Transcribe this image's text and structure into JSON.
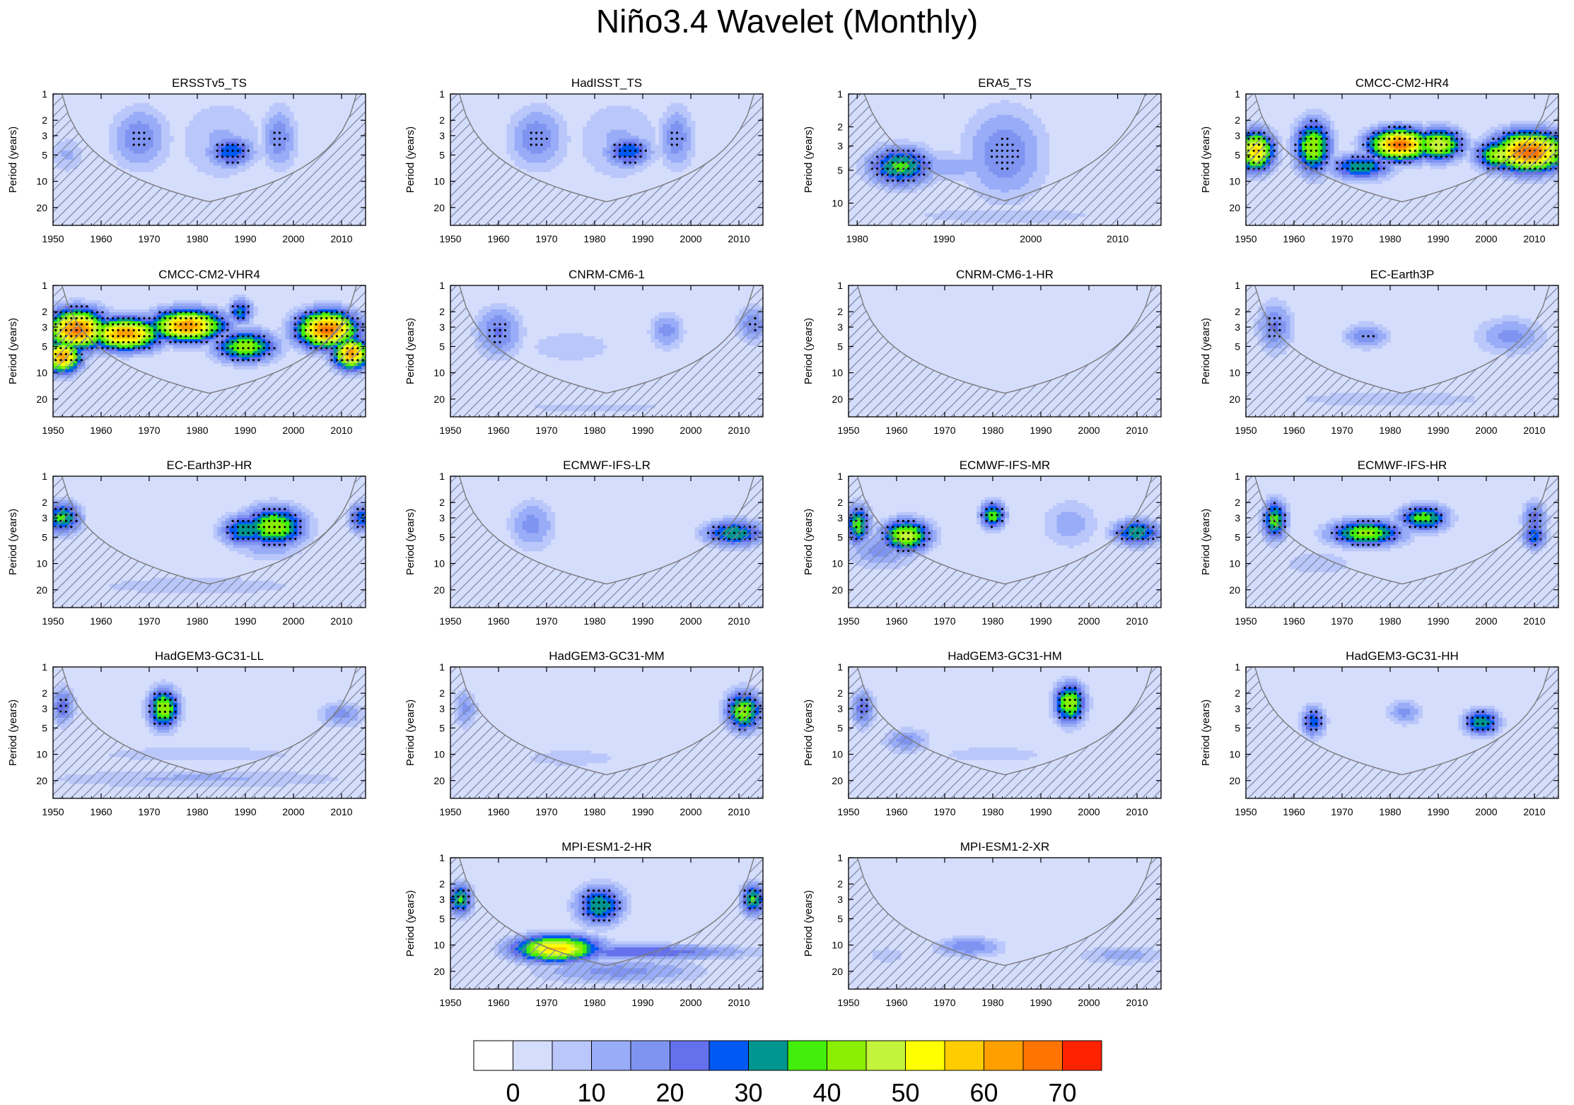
{
  "figure": {
    "title": "Niño3.4 Wavelet (Monthly)"
  },
  "chart_data": {
    "type": "heatmap",
    "ylabel": "Period (years)",
    "y_ticks": [
      1,
      2,
      3,
      5,
      10,
      20
    ],
    "y_scale": "log",
    "colorbar": {
      "levels": [
        0,
        5,
        10,
        15,
        20,
        25,
        30,
        35,
        40,
        45,
        50,
        55,
        60,
        65,
        70,
        75
      ],
      "tick_labels": [
        "0",
        "10",
        "20",
        "30",
        "40",
        "50",
        "60",
        "70"
      ],
      "colors": [
        "#ffffff",
        "#d5ddfc",
        "#bac7fa",
        "#98acf7",
        "#7f94f1",
        "#6470ec",
        "#0059f3",
        "#00958f",
        "#42ee0a",
        "#8aee05",
        "#c4f33b",
        "#ffff00",
        "#ffcc00",
        "#ff9f00",
        "#ff7400",
        "#ff2200"
      ]
    },
    "panels": [
      {
        "name": "ERSSTv5_TS",
        "x_start": 1950,
        "x_end": 2015,
        "x_ticks": [
          1950,
          1960,
          1970,
          1980,
          1990,
          2000,
          2010
        ],
        "y_range": [
          1,
          32
        ],
        "blobs": [
          {
            "x": 1968,
            "y": 3.2,
            "sx": 5,
            "sy": 0.25,
            "v": 24
          },
          {
            "x": 1987,
            "y": 4.6,
            "sx": 4,
            "sy": 0.12,
            "v": 34
          },
          {
            "x": 1985,
            "y": 3.5,
            "sx": 8,
            "sy": 0.35,
            "v": 16
          },
          {
            "x": 1997,
            "y": 3.2,
            "sx": 3,
            "sy": 0.25,
            "v": 24
          },
          {
            "x": 1953,
            "y": 5.0,
            "sx": 3,
            "sy": 0.15,
            "v": 16
          },
          {
            "x": 1985,
            "y": 7.0,
            "sx": 25,
            "sy": 0.35,
            "v": 10
          }
        ]
      },
      {
        "name": "HadISST_TS",
        "x_start": 1950,
        "x_end": 2015,
        "x_ticks": [
          1950,
          1960,
          1970,
          1980,
          1990,
          2000,
          2010
        ],
        "y_range": [
          1,
          32
        ],
        "blobs": [
          {
            "x": 1968,
            "y": 3.2,
            "sx": 5,
            "sy": 0.25,
            "v": 24
          },
          {
            "x": 1987,
            "y": 4.6,
            "sx": 4,
            "sy": 0.12,
            "v": 34
          },
          {
            "x": 1985,
            "y": 3.5,
            "sx": 8,
            "sy": 0.35,
            "v": 16
          },
          {
            "x": 1997,
            "y": 3.2,
            "sx": 3,
            "sy": 0.25,
            "v": 24
          },
          {
            "x": 1985,
            "y": 7.0,
            "sx": 25,
            "sy": 0.35,
            "v": 10
          }
        ]
      },
      {
        "name": "ERA5_TS",
        "x_start": 1979,
        "x_end": 2015,
        "x_ticks": [
          1980,
          1990,
          2000,
          2010
        ],
        "y_range": [
          1,
          16
        ],
        "blobs": [
          {
            "x": 1985,
            "y": 4.6,
            "sx": 3,
            "sy": 0.12,
            "v": 42
          },
          {
            "x": 1997,
            "y": 3.5,
            "sx": 4,
            "sy": 0.3,
            "v": 24
          },
          {
            "x": 1990,
            "y": 4.6,
            "sx": 7,
            "sy": 0.1,
            "v": 18
          },
          {
            "x": 1997,
            "y": 13,
            "sx": 15,
            "sy": 0.08,
            "v": 12
          }
        ]
      },
      {
        "name": "CMCC-CM2-HR4",
        "x_start": 1950,
        "x_end": 2015,
        "x_ticks": [
          1950,
          1960,
          1970,
          1980,
          1990,
          2000,
          2010
        ],
        "y_range": [
          1,
          32
        ],
        "blobs": [
          {
            "x": 1952,
            "y": 4.5,
            "sx": 3,
            "sy": 0.15,
            "v": 62
          },
          {
            "x": 1964,
            "y": 4.0,
            "sx": 3,
            "sy": 0.2,
            "v": 50
          },
          {
            "x": 1974,
            "y": 6.8,
            "sx": 5,
            "sy": 0.1,
            "v": 40
          },
          {
            "x": 1982,
            "y": 3.8,
            "sx": 5,
            "sy": 0.12,
            "v": 72
          },
          {
            "x": 1990,
            "y": 3.8,
            "sx": 4,
            "sy": 0.12,
            "v": 55
          },
          {
            "x": 2009,
            "y": 4.6,
            "sx": 6,
            "sy": 0.15,
            "v": 74
          },
          {
            "x": 2003,
            "y": 5.0,
            "sx": 4,
            "sy": 0.12,
            "v": 52
          }
        ]
      },
      {
        "name": "CMCC-CM2-VHR4",
        "x_start": 1950,
        "x_end": 2015,
        "x_ticks": [
          1950,
          1960,
          1970,
          1980,
          1990,
          2000,
          2010
        ],
        "y_range": [
          1,
          32
        ],
        "blobs": [
          {
            "x": 1955,
            "y": 3.2,
            "sx": 5,
            "sy": 0.15,
            "v": 72
          },
          {
            "x": 1965,
            "y": 3.6,
            "sx": 6,
            "sy": 0.12,
            "v": 68
          },
          {
            "x": 1978,
            "y": 2.9,
            "sx": 6,
            "sy": 0.12,
            "v": 68
          },
          {
            "x": 1990,
            "y": 5.0,
            "sx": 5,
            "sy": 0.12,
            "v": 48
          },
          {
            "x": 2007,
            "y": 3.2,
            "sx": 5,
            "sy": 0.14,
            "v": 72
          },
          {
            "x": 1952,
            "y": 6.5,
            "sx": 3,
            "sy": 0.12,
            "v": 68
          },
          {
            "x": 2012,
            "y": 6.0,
            "sx": 3,
            "sy": 0.12,
            "v": 68
          },
          {
            "x": 1989,
            "y": 2.0,
            "sx": 2,
            "sy": 0.1,
            "v": 36
          }
        ]
      },
      {
        "name": "CNRM-CM6-1",
        "x_start": 1950,
        "x_end": 2015,
        "x_ticks": [
          1950,
          1960,
          1970,
          1980,
          1990,
          2000,
          2010
        ],
        "y_range": [
          1,
          32
        ],
        "blobs": [
          {
            "x": 1960,
            "y": 3.4,
            "sx": 4,
            "sy": 0.2,
            "v": 26
          },
          {
            "x": 1995,
            "y": 3.3,
            "sx": 3,
            "sy": 0.15,
            "v": 22
          },
          {
            "x": 2013,
            "y": 2.8,
            "sx": 3,
            "sy": 0.15,
            "v": 24
          },
          {
            "x": 1980,
            "y": 25,
            "sx": 30,
            "sy": 0.08,
            "v": 11
          },
          {
            "x": 1975,
            "y": 5.0,
            "sx": 12,
            "sy": 0.2,
            "v": 12
          }
        ]
      },
      {
        "name": "CNRM-CM6-1-HR",
        "x_start": 1950,
        "x_end": 2015,
        "x_ticks": [
          1950,
          1960,
          1970,
          1980,
          1990,
          2000,
          2010
        ],
        "y_range": [
          1,
          32
        ],
        "blobs": [
          {
            "x": 1985,
            "y": 2.5,
            "sx": 12,
            "sy": 0.25,
            "v": 7
          }
        ]
      },
      {
        "name": "EC-Earth3P",
        "x_start": 1950,
        "x_end": 2015,
        "x_ticks": [
          1950,
          1960,
          1970,
          1980,
          1990,
          2000,
          2010
        ],
        "y_range": [
          1,
          32
        ],
        "blobs": [
          {
            "x": 1956,
            "y": 3.0,
            "sx": 3,
            "sy": 0.2,
            "v": 26
          },
          {
            "x": 1975,
            "y": 3.8,
            "sx": 4,
            "sy": 0.1,
            "v": 24
          },
          {
            "x": 2005,
            "y": 3.8,
            "sx": 6,
            "sy": 0.15,
            "v": 22
          },
          {
            "x": 1980,
            "y": 20,
            "sx": 30,
            "sy": 0.1,
            "v": 12
          },
          {
            "x": 1980,
            "y": 8,
            "sx": 30,
            "sy": 0.1,
            "v": 10
          }
        ]
      },
      {
        "name": "EC-Earth3P-HR",
        "x_start": 1950,
        "x_end": 2015,
        "x_ticks": [
          1950,
          1960,
          1970,
          1980,
          1990,
          2000,
          2010
        ],
        "y_range": [
          1,
          32
        ],
        "blobs": [
          {
            "x": 1952,
            "y": 3.0,
            "sx": 3,
            "sy": 0.12,
            "v": 42
          },
          {
            "x": 1996,
            "y": 3.8,
            "sx": 5,
            "sy": 0.15,
            "v": 50
          },
          {
            "x": 1990,
            "y": 4.2,
            "sx": 4,
            "sy": 0.12,
            "v": 40
          },
          {
            "x": 2014,
            "y": 3.0,
            "sx": 2,
            "sy": 0.12,
            "v": 34
          },
          {
            "x": 1980,
            "y": 18,
            "sx": 30,
            "sy": 0.12,
            "v": 12
          },
          {
            "x": 1995,
            "y": 6.5,
            "sx": 6,
            "sy": 0.1,
            "v": 20
          }
        ]
      },
      {
        "name": "ECMWF-IFS-LR",
        "x_start": 1950,
        "x_end": 2015,
        "x_ticks": [
          1950,
          1960,
          1970,
          1980,
          1990,
          2000,
          2010
        ],
        "y_range": [
          1,
          32
        ],
        "blobs": [
          {
            "x": 2009,
            "y": 4.5,
            "sx": 5,
            "sy": 0.1,
            "v": 40
          },
          {
            "x": 1967,
            "y": 3.6,
            "sx": 4,
            "sy": 0.2,
            "v": 22
          },
          {
            "x": 1990,
            "y": 8,
            "sx": 15,
            "sy": 0.2,
            "v": 10
          }
        ]
      },
      {
        "name": "ECMWF-IFS-MR",
        "x_start": 1950,
        "x_end": 2015,
        "x_ticks": [
          1950,
          1960,
          1970,
          1980,
          1990,
          2000,
          2010
        ],
        "y_range": [
          1,
          32
        ],
        "blobs": [
          {
            "x": 1962,
            "y": 4.8,
            "sx": 4,
            "sy": 0.12,
            "v": 52
          },
          {
            "x": 1952,
            "y": 3.6,
            "sx": 2,
            "sy": 0.15,
            "v": 44
          },
          {
            "x": 1980,
            "y": 2.8,
            "sx": 2,
            "sy": 0.1,
            "v": 45
          },
          {
            "x": 2010,
            "y": 4.4,
            "sx": 4,
            "sy": 0.1,
            "v": 40
          },
          {
            "x": 1957,
            "y": 7,
            "sx": 6,
            "sy": 0.15,
            "v": 22
          },
          {
            "x": 1996,
            "y": 3.5,
            "sx": 5,
            "sy": 0.2,
            "v": 18
          }
        ]
      },
      {
        "name": "ECMWF-IFS-HR",
        "x_start": 1950,
        "x_end": 2015,
        "x_ticks": [
          1950,
          1960,
          1970,
          1980,
          1990,
          2000,
          2010
        ],
        "y_range": [
          1,
          32
        ],
        "blobs": [
          {
            "x": 1956,
            "y": 3.2,
            "sx": 2,
            "sy": 0.15,
            "v": 44
          },
          {
            "x": 1975,
            "y": 4.5,
            "sx": 6,
            "sy": 0.1,
            "v": 48
          },
          {
            "x": 1987,
            "y": 3.0,
            "sx": 4,
            "sy": 0.1,
            "v": 44
          },
          {
            "x": 2010,
            "y": 3.2,
            "sx": 2,
            "sy": 0.15,
            "v": 30
          },
          {
            "x": 2010,
            "y": 4.8,
            "sx": 2,
            "sy": 0.1,
            "v": 36
          },
          {
            "x": 1965,
            "y": 10,
            "sx": 10,
            "sy": 0.15,
            "v": 12
          }
        ]
      },
      {
        "name": "HadGEM3-GC31-LL",
        "x_start": 1950,
        "x_end": 2015,
        "x_ticks": [
          1950,
          1960,
          1970,
          1980,
          1990,
          2000,
          2010
        ],
        "y_range": [
          1,
          32
        ],
        "blobs": [
          {
            "x": 1973,
            "y": 3.0,
            "sx": 2.5,
            "sy": 0.15,
            "v": 50
          },
          {
            "x": 1952,
            "y": 2.8,
            "sx": 2,
            "sy": 0.15,
            "v": 28
          },
          {
            "x": 2010,
            "y": 3.5,
            "sx": 4,
            "sy": 0.1,
            "v": 22
          },
          {
            "x": 1980,
            "y": 19,
            "sx": 30,
            "sy": 0.08,
            "v": 16
          },
          {
            "x": 1980,
            "y": 10,
            "sx": 30,
            "sy": 0.1,
            "v": 12
          }
        ]
      },
      {
        "name": "HadGEM3-GC31-MM",
        "x_start": 1950,
        "x_end": 2015,
        "x_ticks": [
          1950,
          1960,
          1970,
          1980,
          1990,
          2000,
          2010
        ],
        "y_range": [
          1,
          32
        ],
        "blobs": [
          {
            "x": 2011,
            "y": 3.2,
            "sx": 3,
            "sy": 0.15,
            "v": 48
          },
          {
            "x": 1953,
            "y": 3.0,
            "sx": 2,
            "sy": 0.15,
            "v": 22
          },
          {
            "x": 1975,
            "y": 11,
            "sx": 10,
            "sy": 0.08,
            "v": 14
          }
        ]
      },
      {
        "name": "HadGEM3-GC31-HM",
        "x_start": 1950,
        "x_end": 2015,
        "x_ticks": [
          1950,
          1960,
          1970,
          1980,
          1990,
          2000,
          2010
        ],
        "y_range": [
          1,
          32
        ],
        "blobs": [
          {
            "x": 1996,
            "y": 2.6,
            "sx": 2.5,
            "sy": 0.15,
            "v": 50
          },
          {
            "x": 1953,
            "y": 3.0,
            "sx": 2,
            "sy": 0.15,
            "v": 28
          },
          {
            "x": 1962,
            "y": 7,
            "sx": 4,
            "sy": 0.1,
            "v": 22
          },
          {
            "x": 1980,
            "y": 10,
            "sx": 15,
            "sy": 0.1,
            "v": 12
          }
        ]
      },
      {
        "name": "HadGEM3-GC31-HH",
        "x_start": 1950,
        "x_end": 2015,
        "x_ticks": [
          1950,
          1960,
          1970,
          1980,
          1990,
          2000,
          2010
        ],
        "y_range": [
          1,
          32
        ],
        "blobs": [
          {
            "x": 1964,
            "y": 4.2,
            "sx": 2,
            "sy": 0.12,
            "v": 34
          },
          {
            "x": 1999,
            "y": 4.3,
            "sx": 3,
            "sy": 0.1,
            "v": 40
          },
          {
            "x": 1983,
            "y": 3.3,
            "sx": 3,
            "sy": 0.1,
            "v": 22
          }
        ]
      },
      {
        "name": "MPI-ESM1-2-HR",
        "x_start": 1950,
        "x_end": 2015,
        "x_ticks": [
          1950,
          1960,
          1970,
          1980,
          1990,
          2000,
          2010
        ],
        "y_range": [
          1,
          32
        ],
        "blobs": [
          {
            "x": 1972,
            "y": 11,
            "sx": 7,
            "sy": 0.1,
            "v": 62
          },
          {
            "x": 1990,
            "y": 12,
            "sx": 18,
            "sy": 0.06,
            "v": 30
          },
          {
            "x": 1981,
            "y": 3.5,
            "sx": 4,
            "sy": 0.15,
            "v": 40
          },
          {
            "x": 1952,
            "y": 3.0,
            "sx": 2,
            "sy": 0.12,
            "v": 42
          },
          {
            "x": 2013,
            "y": 3.0,
            "sx": 2,
            "sy": 0.12,
            "v": 42
          },
          {
            "x": 1985,
            "y": 20,
            "sx": 15,
            "sy": 0.1,
            "v": 22
          }
        ]
      },
      {
        "name": "MPI-ESM1-2-XR",
        "x_start": 1950,
        "x_end": 2015,
        "x_ticks": [
          1950,
          1960,
          1970,
          1980,
          1990,
          2000,
          2010
        ],
        "y_range": [
          1,
          32
        ],
        "blobs": [
          {
            "x": 1975,
            "y": 10.5,
            "sx": 6,
            "sy": 0.08,
            "v": 24
          },
          {
            "x": 2007,
            "y": 13,
            "sx": 8,
            "sy": 0.08,
            "v": 18
          },
          {
            "x": 1958,
            "y": 13,
            "sx": 5,
            "sy": 0.1,
            "v": 12
          }
        ]
      }
    ]
  }
}
